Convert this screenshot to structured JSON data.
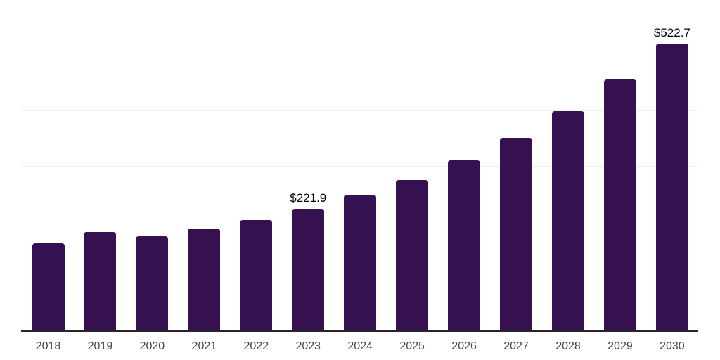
{
  "chart_data": {
    "type": "bar",
    "title": "",
    "xlabel": "",
    "ylabel": "",
    "categories": [
      "2018",
      "2019",
      "2020",
      "2021",
      "2022",
      "2023",
      "2024",
      "2025",
      "2026",
      "2027",
      "2028",
      "2029",
      "2030"
    ],
    "values": [
      160,
      180,
      172,
      186,
      202,
      221.9,
      248,
      275,
      310,
      351,
      400,
      457,
      522.7
    ],
    "data_labels": {
      "2023": "$221.9",
      "2030": "$522.7"
    },
    "ylim": [
      0,
      600
    ],
    "gridline_step": 100,
    "grid": true,
    "legend": false,
    "y_tick_labels_visible": false
  },
  "colors": {
    "background": "#ffffff",
    "bar": "#351151",
    "axis_line": "#262626",
    "gridline": "#f1f1f1",
    "tick_label": "#444444",
    "data_label": "#000000"
  }
}
